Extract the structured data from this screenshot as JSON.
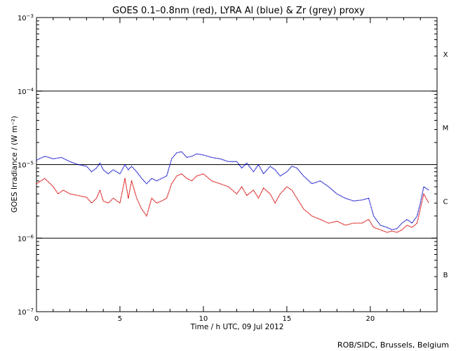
{
  "chart_data": {
    "type": "line",
    "title": "GOES 0.1–0.8nm (red), LYRA Al (blue) & Zr (grey) proxy",
    "xlabel": "Time / h UTC, 09 Jul 2012",
    "ylabel": "GOES Irradiance / (W m⁻²)",
    "xlim": [
      0,
      24
    ],
    "ylim": [
      1e-07,
      0.001
    ],
    "y_scale": "log",
    "grid": false,
    "x_ticks": [
      0,
      5,
      10,
      15,
      20
    ],
    "x_tick_labels": [
      "0",
      "5",
      "10",
      "15",
      "20"
    ],
    "y_ticks": [
      1e-07,
      1e-06,
      1e-05,
      0.0001,
      0.001
    ],
    "y_tick_labels": [
      {
        "base": "10",
        "exp": "−7"
      },
      {
        "base": "10",
        "exp": "−6"
      },
      {
        "base": "10",
        "exp": "−5"
      },
      {
        "base": "10",
        "exp": "−4"
      },
      {
        "base": "10",
        "exp": "−3"
      }
    ],
    "flare_class_lines": [
      1e-06,
      1e-05,
      0.0001
    ],
    "flare_classes": [
      {
        "label": "X",
        "y": 0.00032
      },
      {
        "label": "M",
        "y": 3.2e-05
      },
      {
        "label": "C",
        "y": 3.2e-06
      },
      {
        "label": "B",
        "y": 3.2e-07
      }
    ],
    "series": [
      {
        "color": "#0000c8",
        "x": [
          0.0,
          0.5,
          1.0,
          1.5,
          2.0,
          2.5,
          3.0,
          3.3,
          3.6,
          3.8,
          4.0,
          4.3,
          4.6,
          5.0,
          5.3,
          5.5,
          5.7,
          6.0,
          6.3,
          6.6,
          6.9,
          7.2,
          7.5,
          7.8,
          8.1,
          8.4,
          8.7,
          9.0,
          9.3,
          9.6,
          10.0,
          10.5,
          11.0,
          11.5,
          12.0,
          12.3,
          12.6,
          13.0,
          13.3,
          13.6,
          14.0,
          14.3,
          14.6,
          15.0,
          15.3,
          15.6,
          16.0,
          16.5,
          17.0,
          17.5,
          18.0,
          18.5,
          19.0,
          19.5,
          19.9,
          20.2,
          20.6,
          21.0,
          21.3,
          21.6,
          21.9,
          22.2,
          22.5,
          22.8,
          23.0,
          23.2,
          23.5
        ],
        "values": [
          1.15e-05,
          1.3e-05,
          1.2e-05,
          1.25e-05,
          1.1e-05,
          1e-05,
          9.5e-06,
          8e-06,
          9e-06,
          1.05e-05,
          8.5e-06,
          7.5e-06,
          8.5e-06,
          7.5e-06,
          1e-05,
          8.5e-06,
          9.5e-06,
          8e-06,
          6.5e-06,
          5.5e-06,
          6.5e-06,
          6e-06,
          6.5e-06,
          7e-06,
          1.2e-05,
          1.45e-05,
          1.5e-05,
          1.25e-05,
          1.3e-05,
          1.4e-05,
          1.35e-05,
          1.25e-05,
          1.2e-05,
          1.1e-05,
          1.1e-05,
          9e-06,
          1.05e-05,
          8e-06,
          1e-05,
          7.5e-06,
          9.5e-06,
          8.5e-06,
          7e-06,
          8e-06,
          9.5e-06,
          9e-06,
          7e-06,
          5.5e-06,
          6e-06,
          5e-06,
          4e-06,
          3.5e-06,
          3.2e-06,
          3.3e-06,
          3.5e-06,
          2e-06,
          1.5e-06,
          1.4e-06,
          1.3e-06,
          1.35e-06,
          1.6e-06,
          1.8e-06,
          1.6e-06,
          2e-06,
          3e-06,
          5e-06,
          4.5e-06
        ]
      },
      {
        "color": "#d40000",
        "x": [
          0.0,
          0.5,
          1.0,
          1.3,
          1.6,
          2.0,
          2.5,
          3.0,
          3.3,
          3.6,
          3.8,
          4.0,
          4.3,
          4.6,
          5.0,
          5.3,
          5.5,
          5.7,
          6.0,
          6.3,
          6.6,
          6.9,
          7.2,
          7.5,
          7.8,
          8.1,
          8.4,
          8.7,
          9.0,
          9.3,
          9.6,
          10.0,
          10.5,
          11.0,
          11.5,
          12.0,
          12.3,
          12.6,
          13.0,
          13.3,
          13.6,
          14.0,
          14.3,
          14.6,
          15.0,
          15.3,
          15.6,
          16.0,
          16.5,
          17.0,
          17.5,
          18.0,
          18.5,
          19.0,
          19.5,
          19.9,
          20.2,
          20.6,
          21.0,
          21.3,
          21.6,
          21.9,
          22.2,
          22.5,
          22.8,
          23.0,
          23.2,
          23.5
        ],
        "values": [
          5.5e-06,
          6.5e-06,
          5e-06,
          4e-06,
          4.5e-06,
          4e-06,
          3.8e-06,
          3.6e-06,
          3e-06,
          3.5e-06,
          4.5e-06,
          3.2e-06,
          3e-06,
          3.5e-06,
          3e-06,
          6.5e-06,
          3.5e-06,
          6e-06,
          3.5e-06,
          2.5e-06,
          2e-06,
          3.5e-06,
          3e-06,
          3.2e-06,
          3.5e-06,
          5.5e-06,
          7e-06,
          7.5e-06,
          6.5e-06,
          6e-06,
          7e-06,
          7.5e-06,
          6e-06,
          5.5e-06,
          5e-06,
          4e-06,
          5e-06,
          3.8e-06,
          4.5e-06,
          3.5e-06,
          4.8e-06,
          4e-06,
          3e-06,
          4e-06,
          5e-06,
          4.5e-06,
          3.5e-06,
          2.5e-06,
          2e-06,
          1.8e-06,
          1.6e-06,
          1.7e-06,
          1.5e-06,
          1.6e-06,
          1.6e-06,
          1.8e-06,
          1.4e-06,
          1.3e-06,
          1.2e-06,
          1.25e-06,
          1.2e-06,
          1.3e-06,
          1.5e-06,
          1.4e-06,
          1.6e-06,
          2.5e-06,
          4e-06,
          3e-06
        ]
      }
    ]
  },
  "footer": {
    "credit": "ROB/SIDC, Brussels, Belgium"
  }
}
